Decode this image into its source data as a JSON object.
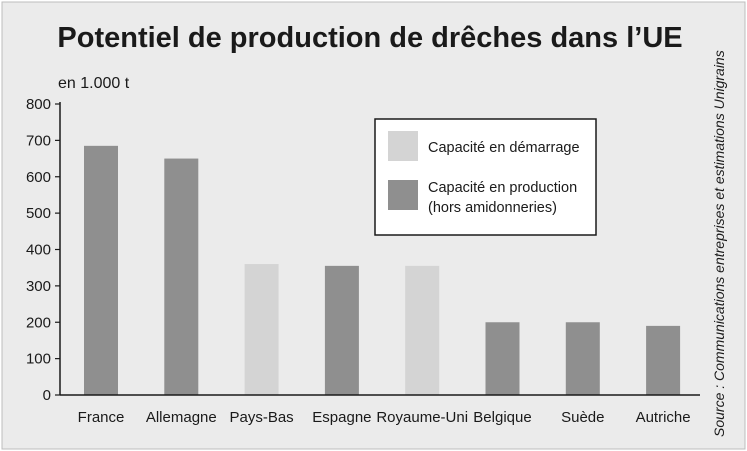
{
  "colors": {
    "background": "#ebebeb",
    "demarrage": "#d4d4d4",
    "production": "#8f8f8f",
    "frame": "#1a1a1a"
  },
  "chart_data": {
    "type": "bar",
    "title": "Potentiel de production de drêches dans l’UE",
    "ylabel": "en 1.000 t",
    "xlabel": "",
    "ylim": [
      0,
      800
    ],
    "yticks": [
      0,
      100,
      200,
      300,
      400,
      500,
      600,
      700,
      800
    ],
    "grid": false,
    "legend_position": "top-right",
    "categories": [
      "France",
      "Allemagne",
      "Pays-Bas",
      "Espagne",
      "Royaume-Uni",
      "Belgique",
      "Suède",
      "Autriche"
    ],
    "values": [
      685,
      650,
      360,
      355,
      355,
      200,
      200,
      190
    ],
    "bar_series": [
      "production",
      "production",
      "demarrage",
      "production",
      "demarrage",
      "production",
      "production",
      "production"
    ],
    "legend": [
      {
        "key": "demarrage",
        "label_lines": [
          "Capacité en démarrage"
        ]
      },
      {
        "key": "production",
        "label_lines": [
          "Capacité en production",
          "(hors amidonneries)"
        ]
      }
    ],
    "source": "Source : Communications entreprises et estimations Unigrains"
  }
}
